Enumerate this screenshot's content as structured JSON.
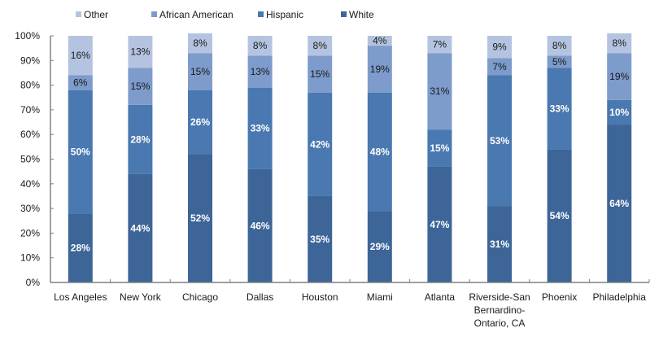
{
  "chart_data": {
    "type": "bar",
    "stacked": true,
    "percent_stacked": true,
    "title": "",
    "xlabel": "",
    "ylabel": "",
    "ylim": [
      0,
      100
    ],
    "yticks": [
      "0%",
      "10%",
      "20%",
      "30%",
      "40%",
      "50%",
      "60%",
      "70%",
      "80%",
      "90%",
      "100%"
    ],
    "grid": false,
    "legend_position": "top",
    "categories": [
      [
        "Los Angeles"
      ],
      [
        "New York"
      ],
      [
        "Chicago"
      ],
      [
        "Dallas"
      ],
      [
        "Houston"
      ],
      [
        "Miami"
      ],
      [
        "Atlanta"
      ],
      [
        "Riverside-San",
        "Bernardino-",
        "Ontario, CA"
      ],
      [
        "Phoenix"
      ],
      [
        "Philadelphia"
      ]
    ],
    "series": [
      {
        "name": "White",
        "color": "#3d6597",
        "label_color": "#ffffff",
        "values": [
          28,
          44,
          52,
          46,
          35,
          29,
          47,
          31,
          54,
          64
        ],
        "labels": [
          "28%",
          "44%",
          "52%",
          "46%",
          "35%",
          "29%",
          "47%",
          "31%",
          "54%",
          "64%"
        ]
      },
      {
        "name": "Hispanic",
        "color": "#4a78b0",
        "label_color": "#ffffff",
        "values": [
          50,
          28,
          26,
          33,
          42,
          48,
          15,
          53,
          33,
          10
        ],
        "labels": [
          "50%",
          "28%",
          "26%",
          "33%",
          "42%",
          "48%",
          "15%",
          "53%",
          "33%",
          "10%"
        ]
      },
      {
        "name": "African American",
        "color": "#7d9bcb",
        "label_color": "#1a1a1a",
        "values": [
          6,
          15,
          15,
          13,
          15,
          19,
          31,
          7,
          5,
          19
        ],
        "labels": [
          "6%",
          "15%",
          "15%",
          "13%",
          "15%",
          "19%",
          "31%",
          "7%",
          "5%",
          "19%"
        ]
      },
      {
        "name": "Other",
        "color": "#b4c4e0",
        "label_color": "#1a1a1a",
        "values": [
          16,
          13,
          8,
          8,
          8,
          4,
          7,
          9,
          8,
          8
        ],
        "labels": [
          "16%",
          "13%",
          "8%",
          "8%",
          "8%",
          "4%",
          "7%",
          "9%",
          "8%",
          "8%"
        ]
      }
    ],
    "legend_order": [
      "Other",
      "African American",
      "Hispanic",
      "White"
    ]
  }
}
